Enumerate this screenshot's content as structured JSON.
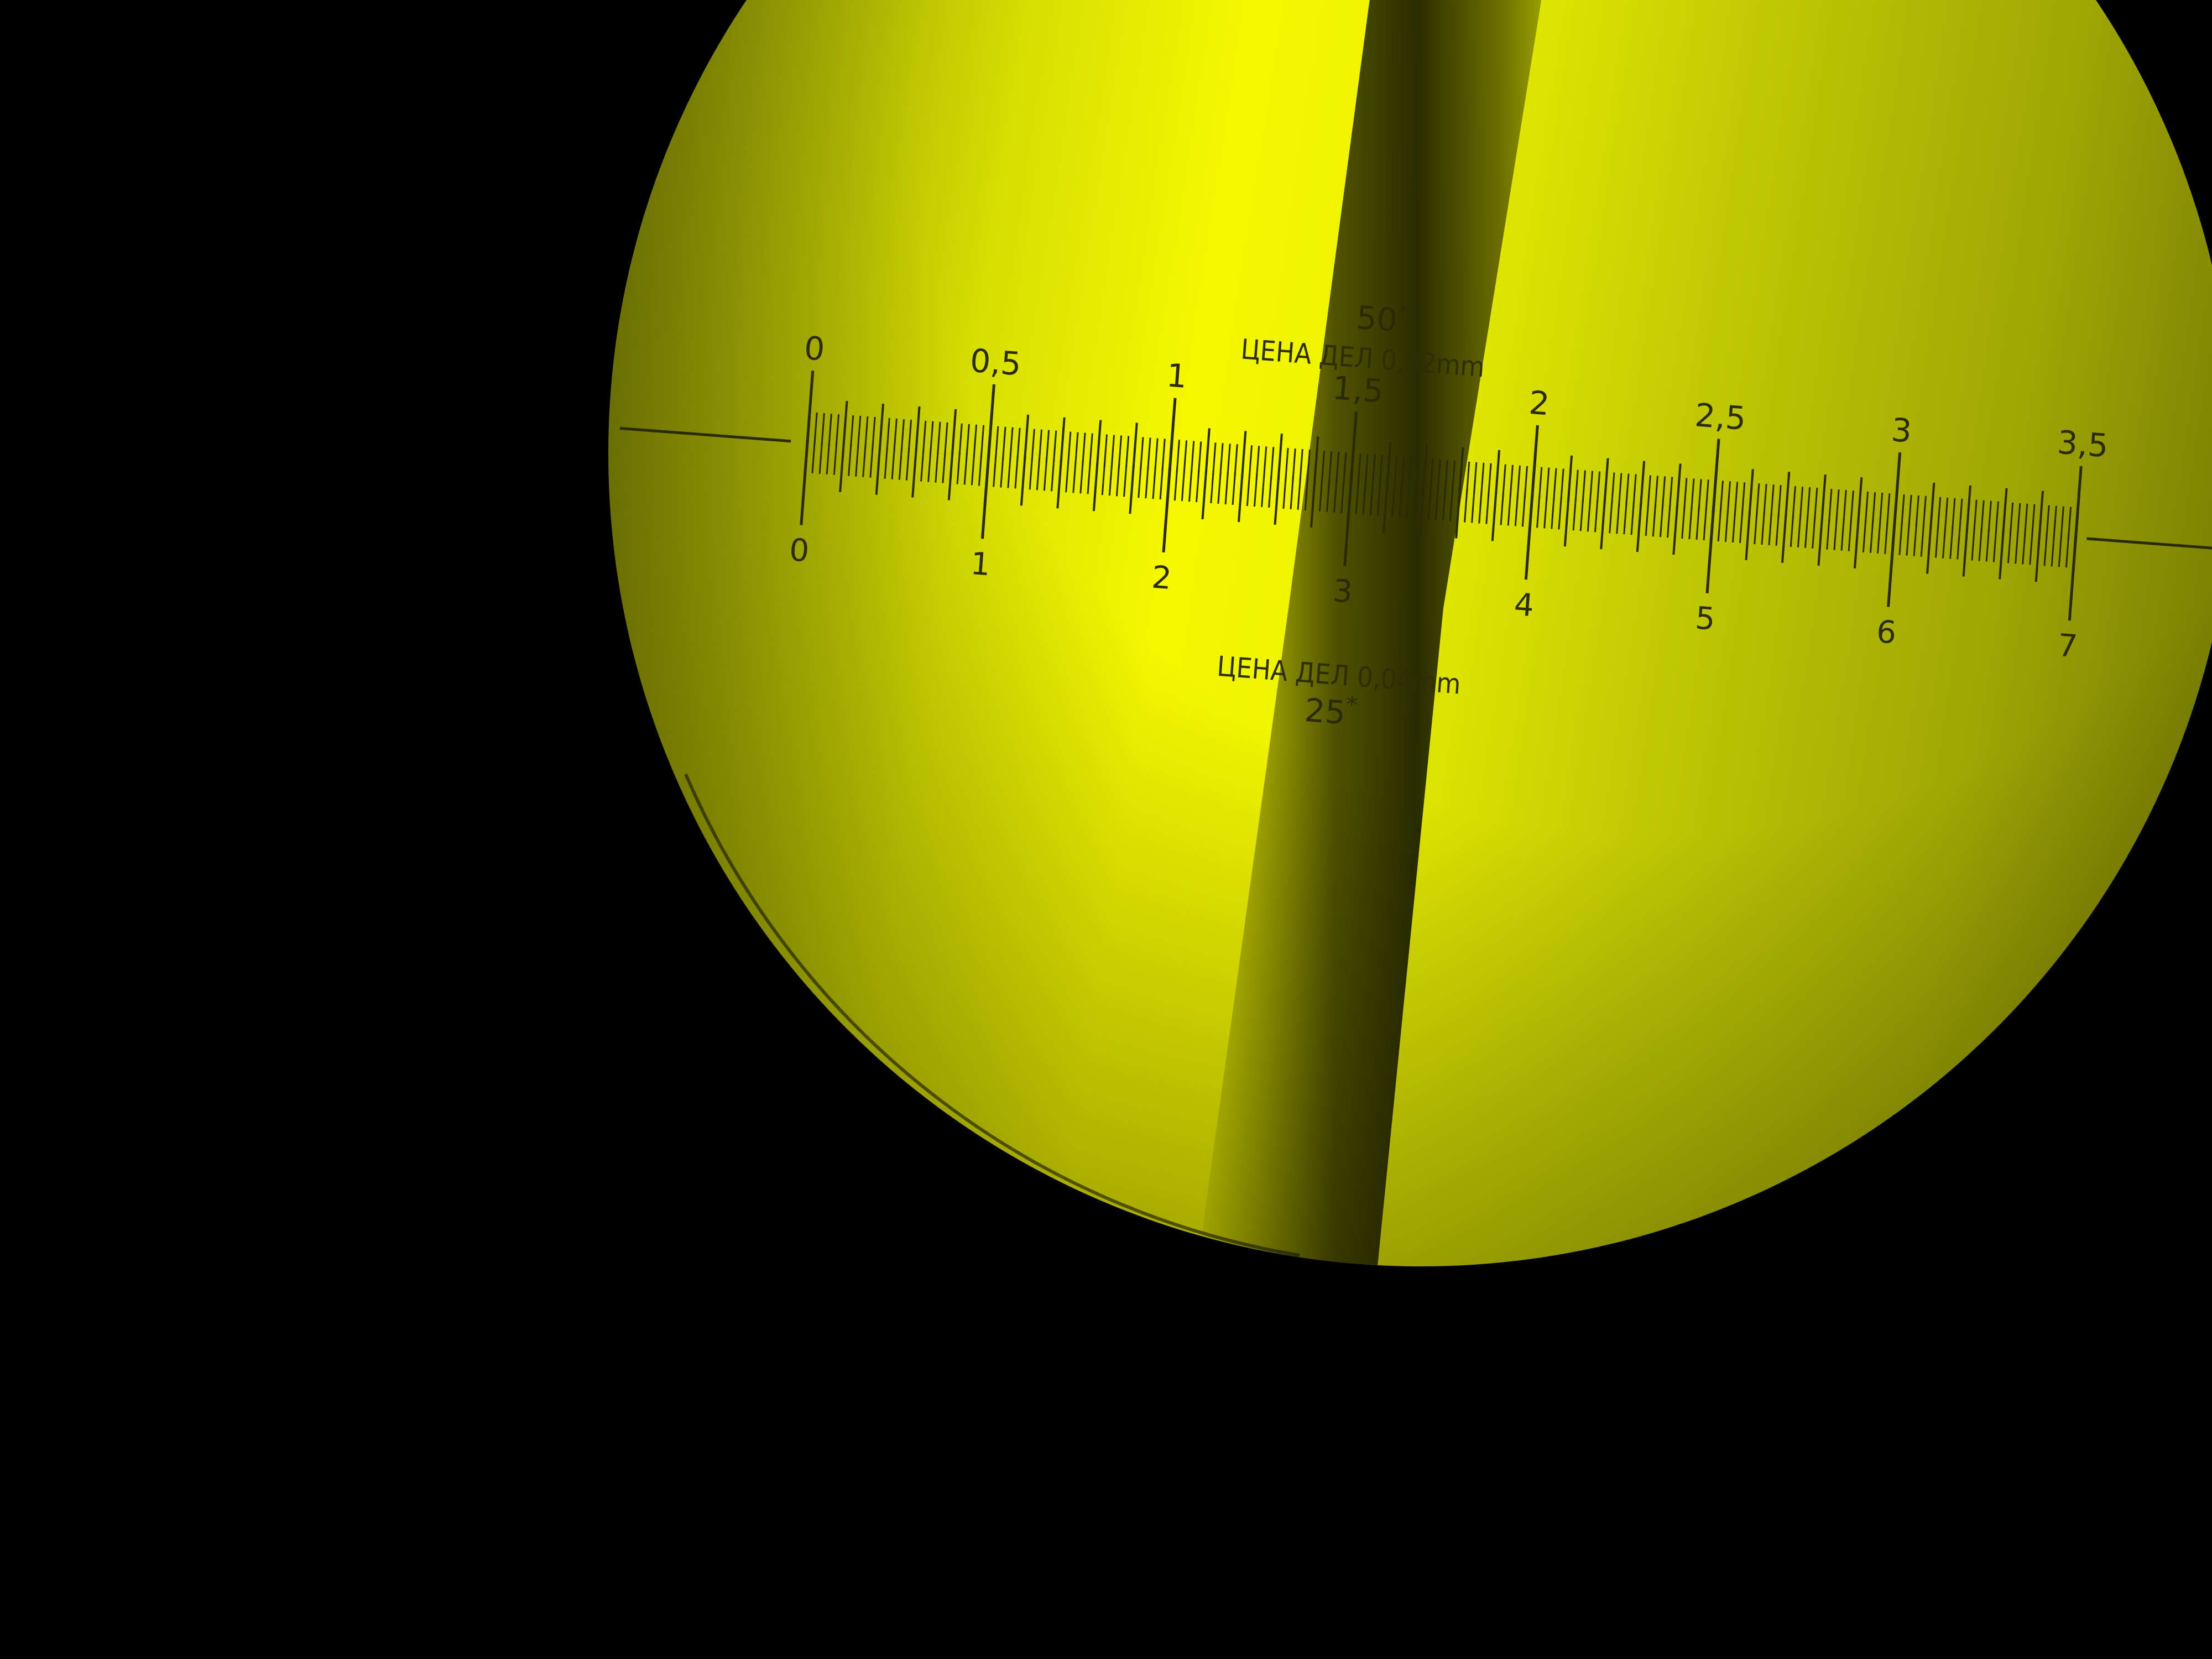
{
  "colors": {
    "background": "#000000",
    "field_bright": "#f2f600",
    "field_mid": "#c7cd05",
    "field_dark": "#6f7503",
    "reticle_ink": "#2a2a05"
  },
  "reticle": {
    "upper_scale": {
      "magnification": "50",
      "caption": "ЦЕНА ДЕЛ 0,02mm",
      "labels": [
        "0",
        "0,5",
        "1",
        "1,5",
        "2",
        "2,5",
        "3",
        "3,5"
      ]
    },
    "lower_scale": {
      "magnification": "25",
      "caption": "ЦЕНА ДЕЛ 0,04mm",
      "labels": [
        "0",
        "1",
        "2",
        "3",
        "4",
        "5",
        "6",
        "7"
      ]
    }
  }
}
